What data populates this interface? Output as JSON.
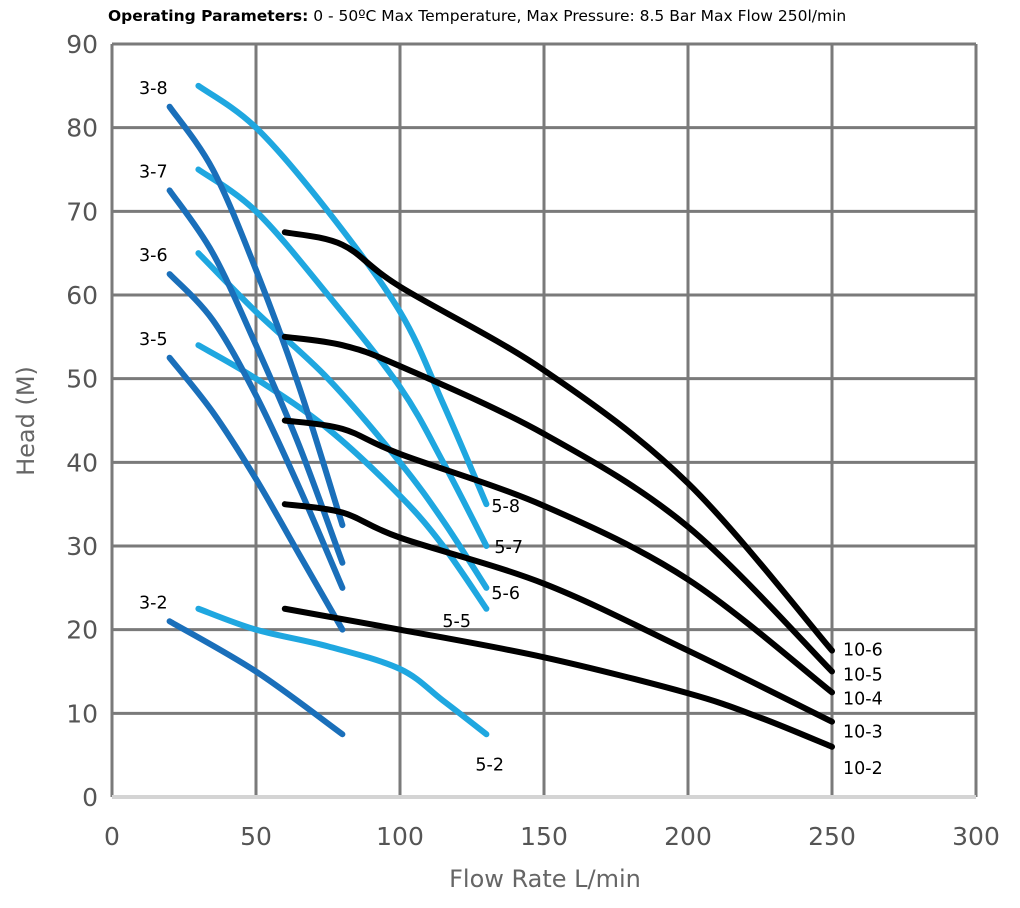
{
  "header": {
    "title_bold": "Operating Parameters:",
    "title_rest": " 0 - 50ºC Max Temperature, Max Pressure: 8.5 Bar Max Flow 250l/min"
  },
  "chart_data": {
    "type": "line",
    "title": "Operating Parameters: 0 - 50ºC Max Temperature, Max Pressure: 8.5 Bar Max Flow 250l/min",
    "xlabel": "Flow Rate L/min",
    "ylabel": "Head (M)",
    "xlim": [
      0,
      300
    ],
    "ylim": [
      0,
      90
    ],
    "xticks": [
      "0",
      "50",
      "100",
      "150",
      "200",
      "250",
      "300"
    ],
    "yticks": [
      "0",
      "10",
      "20",
      "30",
      "40",
      "50",
      "60",
      "70",
      "80",
      "90"
    ],
    "grid": true,
    "colors": {
      "series3": "#1a6fba",
      "series5": "#1fa7e0",
      "series10": "#000000",
      "grid": "#7a7a7a",
      "xaxis": "#d4d4d4"
    },
    "series": [
      {
        "name": "3-2",
        "group": "series3",
        "x": [
          20,
          50,
          80
        ],
        "y": [
          21,
          15,
          7.5
        ]
      },
      {
        "name": "3-5",
        "group": "series3",
        "x": [
          20,
          35,
          50,
          65,
          80
        ],
        "y": [
          52.5,
          46,
          38,
          29,
          20
        ]
      },
      {
        "name": "3-6",
        "group": "series3",
        "x": [
          20,
          35,
          50,
          65,
          80
        ],
        "y": [
          62.5,
          57,
          48,
          37,
          25
        ]
      },
      {
        "name": "3-7",
        "group": "series3",
        "x": [
          20,
          35,
          50,
          65,
          80
        ],
        "y": [
          72.5,
          65,
          54,
          42,
          28
        ]
      },
      {
        "name": "3-8",
        "group": "series3",
        "x": [
          20,
          35,
          50,
          65,
          80
        ],
        "y": [
          82.5,
          75,
          63,
          49,
          32.5
        ]
      },
      {
        "name": "5-2",
        "group": "series5",
        "x": [
          30,
          50,
          75,
          100,
          115,
          130
        ],
        "y": [
          22.5,
          20,
          18,
          15.3,
          11.5,
          7.5
        ]
      },
      {
        "name": "5-5",
        "group": "series5",
        "x": [
          30,
          50,
          75,
          100,
          115,
          130
        ],
        "y": [
          54,
          50,
          44,
          36,
          30,
          22.5
        ]
      },
      {
        "name": "5-6",
        "group": "series5",
        "x": [
          30,
          50,
          75,
          100,
          115,
          130
        ],
        "y": [
          65,
          58,
          50,
          40,
          33,
          25
        ]
      },
      {
        "name": "5-7",
        "group": "series5",
        "x": [
          30,
          50,
          75,
          100,
          115,
          130
        ],
        "y": [
          75,
          70,
          60,
          49,
          40,
          30
        ]
      },
      {
        "name": "5-8",
        "group": "series5",
        "x": [
          30,
          50,
          75,
          100,
          115,
          130
        ],
        "y": [
          85,
          80,
          70,
          58,
          47,
          35
        ]
      },
      {
        "name": "10-2",
        "group": "series10",
        "x": [
          60,
          100,
          150,
          200,
          225,
          250
        ],
        "y": [
          22.5,
          20,
          16.7,
          12.4,
          9.5,
          6
        ]
      },
      {
        "name": "10-3",
        "group": "series10",
        "x": [
          60,
          80,
          100,
          150,
          200,
          250
        ],
        "y": [
          35,
          34,
          31,
          25.5,
          17.5,
          9
        ]
      },
      {
        "name": "10-4",
        "group": "series10",
        "x": [
          60,
          80,
          100,
          150,
          200,
          250
        ],
        "y": [
          45,
          44,
          41,
          34.8,
          26,
          12.5
        ]
      },
      {
        "name": "10-5",
        "group": "series10",
        "x": [
          60,
          80,
          100,
          150,
          200,
          250
        ],
        "y": [
          55,
          54,
          51.5,
          43.4,
          32.3,
          15
        ]
      },
      {
        "name": "10-6",
        "group": "series10",
        "x": [
          60,
          80,
          100,
          150,
          200,
          250
        ],
        "y": [
          67.5,
          66,
          61,
          51,
          37.5,
          17.5
        ]
      }
    ]
  }
}
